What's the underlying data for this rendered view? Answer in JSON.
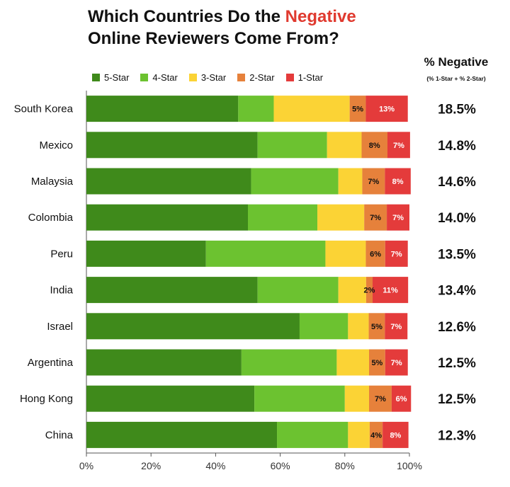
{
  "title": {
    "line1_prefix": "Which Countries Do the ",
    "line1_highlight": "Negative",
    "line2": "Online Reviewers Come From?"
  },
  "negative_header": {
    "title": "% Negative",
    "subtitle": "(% 1-Star + % 2-Star)"
  },
  "colors": {
    "5-Star": "#3f8a1b",
    "4-Star": "#6cc230",
    "3-Star": "#fbd335",
    "2-Star": "#e6813b",
    "1-Star": "#e43b3b"
  },
  "chart_data": {
    "type": "bar",
    "orientation": "horizontal",
    "stacked": true,
    "categories": [
      "South Korea",
      "Mexico",
      "Malaysia",
      "Colombia",
      "Peru",
      "India",
      "Israel",
      "Argentina",
      "Hong Kong",
      "China"
    ],
    "series": [
      {
        "name": "5-Star",
        "values": [
          47,
          53,
          51,
          50,
          37,
          53,
          66,
          48,
          52,
          59
        ]
      },
      {
        "name": "4-Star",
        "values": [
          11,
          21.5,
          27,
          21.5,
          37,
          25,
          15,
          29.5,
          28,
          22
        ]
      },
      {
        "name": "3-Star",
        "values": [
          23.5,
          10.7,
          7.4,
          14.5,
          12.5,
          8.6,
          6.4,
          10,
          7.5,
          6.7
        ]
      },
      {
        "name": "2-Star",
        "values": [
          5,
          8,
          7,
          7,
          6,
          2,
          5,
          5,
          7,
          4
        ]
      },
      {
        "name": "1-Star",
        "values": [
          13,
          7,
          8,
          7,
          7,
          11,
          7,
          7,
          6,
          8
        ]
      }
    ],
    "segment_labels": {
      "2-Star": [
        "5%",
        "8%",
        "7%",
        "7%",
        "6%",
        "2%",
        "5%",
        "5%",
        "7%",
        "4%"
      ],
      "1-Star": [
        "13%",
        "7%",
        "8%",
        "7%",
        "7%",
        "11%",
        "7%",
        "7%",
        "6%",
        "8%"
      ]
    },
    "negative_values": [
      "18.5%",
      "14.8%",
      "14.6%",
      "14.0%",
      "13.5%",
      "13.4%",
      "12.6%",
      "12.5%",
      "12.5%",
      "12.3%"
    ],
    "x_ticks": [
      "0%",
      "20%",
      "40%",
      "60%",
      "80%",
      "100%"
    ],
    "xlim": [
      0,
      100
    ],
    "legend_position": "top",
    "grid": false
  }
}
